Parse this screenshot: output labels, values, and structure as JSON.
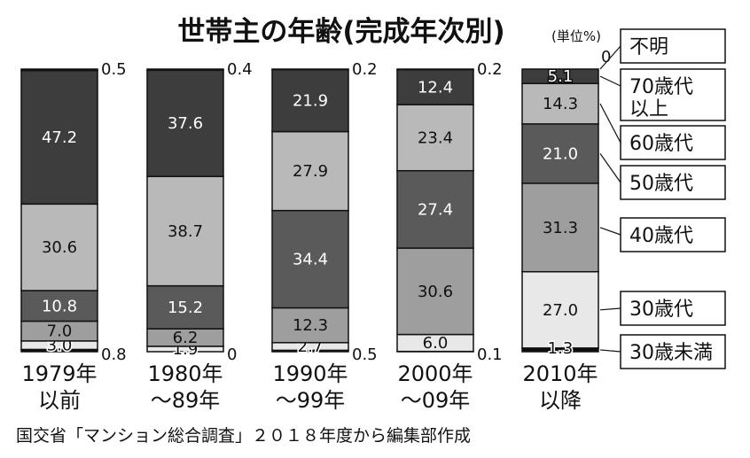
{
  "chart_data": {
    "type": "bar",
    "stacked": true,
    "title": "世帯主の年齢(完成年次別)",
    "unit": "(単位%)",
    "source": "国交省「マンション総合調査」２０１８年度から編集部作成",
    "categories": [
      {
        "line1": "1979年",
        "line2": "以前"
      },
      {
        "line1": "1980年",
        "line2": "～89年"
      },
      {
        "line1": "1990年",
        "line2": "～99年"
      },
      {
        "line1": "2000年",
        "line2": "～09年"
      },
      {
        "line1": "2010年",
        "line2": "以降"
      }
    ],
    "series": [
      {
        "name": "30歳未満",
        "color": "#0d0d0d",
        "text_color": "#ffffff",
        "values": [
          0.8,
          0,
          0.5,
          0.1,
          1.3
        ],
        "labels": [
          "0.8",
          "0",
          "0.5",
          "0.1",
          "1.3"
        ]
      },
      {
        "name": "30歳代",
        "color": "#e8e8e8",
        "text_color": "#111111",
        "values": [
          3.0,
          1.9,
          2.7,
          6.0,
          27.0
        ],
        "labels": [
          "3.0",
          "1.9",
          "2.7",
          "6.0",
          "27.0"
        ]
      },
      {
        "name": "40歳代",
        "color": "#9e9e9e",
        "text_color": "#111111",
        "values": [
          7.0,
          6.2,
          12.3,
          30.6,
          31.3
        ],
        "labels": [
          "7.0",
          "6.2",
          "12.3",
          "30.6",
          "31.3"
        ]
      },
      {
        "name": "50歳代",
        "color": "#5a5a5a",
        "text_color": "#ffffff",
        "values": [
          10.8,
          15.2,
          34.4,
          27.4,
          21.0
        ],
        "labels": [
          "10.8",
          "15.2",
          "34.4",
          "27.4",
          "21.0"
        ]
      },
      {
        "name": "60歳代",
        "color": "#b9b9b9",
        "text_color": "#111111",
        "values": [
          30.6,
          38.7,
          27.9,
          23.4,
          14.3
        ],
        "labels": [
          "30.6",
          "38.7",
          "27.9",
          "23.4",
          "14.3"
        ]
      },
      {
        "name": "70歳代以上",
        "color": "#3d3d3d",
        "text_color": "#ffffff",
        "values": [
          47.2,
          37.6,
          21.9,
          12.4,
          5.1
        ],
        "labels": [
          "47.2",
          "37.6",
          "21.9",
          "12.4",
          "5.1"
        ]
      },
      {
        "name": "不明",
        "color": "#111111",
        "text_color": "#111111",
        "values": [
          0.5,
          0.4,
          0.2,
          0.2,
          0
        ],
        "labels": [
          "0.5",
          "0.4",
          "0.2",
          "0.2",
          "0"
        ]
      }
    ],
    "legend": [
      {
        "lines": [
          "不明"
        ]
      },
      {
        "lines": [
          "70歳代",
          "以上"
        ]
      },
      {
        "lines": [
          "60歳代"
        ]
      },
      {
        "lines": [
          "50歳代"
        ]
      },
      {
        "lines": [
          "40歳代"
        ]
      },
      {
        "lines": [
          "30歳代"
        ]
      },
      {
        "lines": [
          "30歳未満"
        ]
      }
    ],
    "ylim": [
      0,
      100
    ]
  }
}
